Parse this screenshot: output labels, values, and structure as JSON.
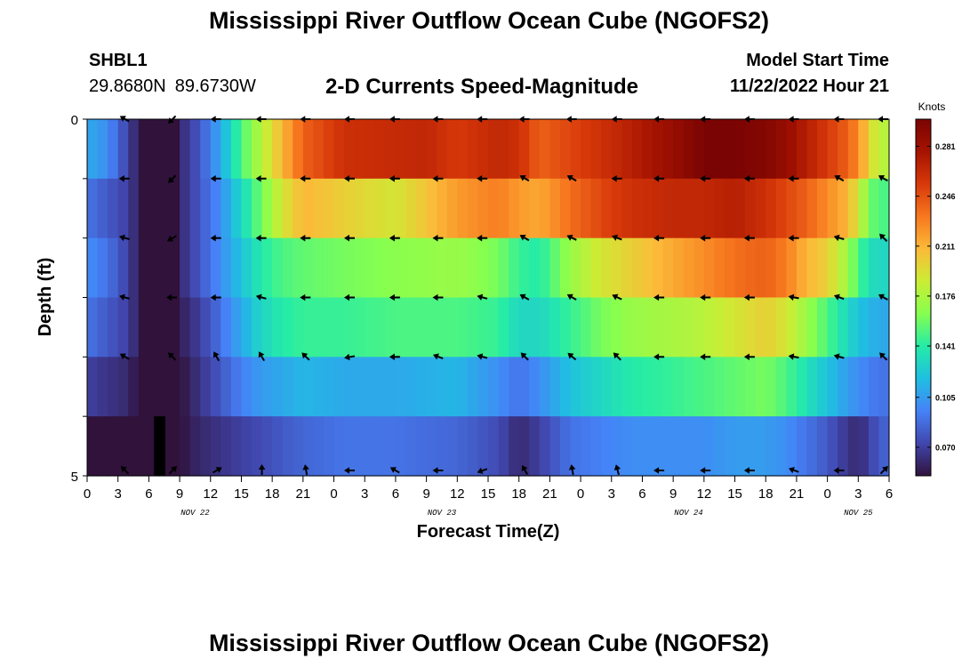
{
  "header": {
    "title": "Mississippi River Outflow Ocean Cube (NGOFS2)",
    "station_id": "SHBL1",
    "lat": "29.8680N",
    "lon": "89.6730W",
    "plot_title": "2-D Currents Speed-Magnitude",
    "start_label": "Model Start Time",
    "start_value": "11/22/2022 Hour 21"
  },
  "footer": {
    "title": "Mississippi River Outflow Ocean Cube (NGOFS2)"
  },
  "chart_data": {
    "type": "heatmap",
    "xlabel": "Forecast Time(Z)",
    "ylabel": "Depth (ft)",
    "xlim": [
      0,
      78
    ],
    "ylim": [
      0,
      5
    ],
    "x_tick_labels": [
      "0",
      "3",
      "6",
      "9",
      "12",
      "15",
      "18",
      "21",
      "0",
      "3",
      "6",
      "9",
      "12",
      "15",
      "18",
      "21",
      "0",
      "3",
      "6",
      "9",
      "12",
      "15",
      "18",
      "21",
      "0",
      "3",
      "6"
    ],
    "y_tick_labels": [
      "0",
      "5"
    ],
    "date_labels": [
      {
        "label": "NOV 22",
        "hour": 10.5
      },
      {
        "label": "NOV 23",
        "hour": 34.5
      },
      {
        "label": "NOV 24",
        "hour": 58.5
      },
      {
        "label": "NOV 25",
        "hour": 75
      }
    ],
    "colorbar": {
      "label": "Knots",
      "ticks": [
        "0.070",
        "0.105",
        "0.141",
        "0.176",
        "0.211",
        "0.246",
        "0.281"
      ],
      "tick_values": [
        0.07,
        0.105,
        0.141,
        0.176,
        0.211,
        0.246,
        0.281
      ],
      "range": [
        0.05,
        0.3
      ],
      "colormap": [
        "#30123b",
        "#4146ad",
        "#4682f8",
        "#1fbfe1",
        "#25eca6",
        "#86ff4f",
        "#cbed34",
        "#fcba39",
        "#f7781f",
        "#d8390a",
        "#a51301",
        "#7a0403"
      ]
    },
    "layers": [
      {
        "name": "0",
        "x": [
          0,
          2,
          4,
          6,
          7,
          8,
          9,
          11,
          13,
          15,
          17,
          19,
          21,
          25,
          33,
          36,
          40,
          42,
          44,
          47,
          50,
          53,
          57,
          60,
          63,
          66,
          68,
          70,
          72,
          74,
          75,
          76,
          77,
          78
        ],
        "values": [
          0.11,
          0.1,
          0.07,
          0.04,
          0.03,
          0.04,
          0.06,
          0.08,
          0.11,
          0.15,
          0.18,
          0.21,
          0.24,
          0.26,
          0.265,
          0.255,
          0.265,
          0.26,
          0.24,
          0.25,
          0.26,
          0.27,
          0.285,
          0.3,
          0.3,
          0.295,
          0.285,
          0.27,
          0.255,
          0.24,
          0.225,
          0.2,
          0.18,
          0.18
        ]
      },
      {
        "name": "1",
        "x": [
          0,
          2,
          4,
          6,
          7,
          8,
          9,
          11,
          13,
          15,
          17,
          19,
          21,
          25,
          30,
          36,
          40,
          42,
          44,
          47,
          50,
          53,
          57,
          60,
          63,
          66,
          68,
          70,
          72,
          74,
          75,
          76,
          77,
          78
        ],
        "values": [
          0.09,
          0.08,
          0.07,
          0.04,
          0.03,
          0.04,
          0.06,
          0.08,
          0.1,
          0.13,
          0.16,
          0.19,
          0.21,
          0.2,
          0.19,
          0.22,
          0.23,
          0.22,
          0.215,
          0.235,
          0.25,
          0.26,
          0.265,
          0.265,
          0.27,
          0.26,
          0.25,
          0.24,
          0.225,
          0.21,
          0.19,
          0.16,
          0.15,
          0.15
        ]
      },
      {
        "name": "2",
        "x": [
          0,
          2,
          4,
          6,
          7,
          8,
          9,
          11,
          13,
          15,
          17,
          19,
          21,
          25,
          30,
          36,
          40,
          42,
          44,
          47,
          50,
          53,
          57,
          60,
          63,
          66,
          68,
          70,
          72,
          74,
          75,
          76,
          77,
          78
        ],
        "values": [
          0.1,
          0.09,
          0.07,
          0.04,
          0.03,
          0.04,
          0.06,
          0.08,
          0.1,
          0.12,
          0.14,
          0.15,
          0.155,
          0.16,
          0.165,
          0.17,
          0.16,
          0.145,
          0.14,
          0.17,
          0.19,
          0.2,
          0.215,
          0.225,
          0.235,
          0.24,
          0.23,
          0.21,
          0.2,
          0.17,
          0.15,
          0.135,
          0.13,
          0.13
        ]
      },
      {
        "name": "3",
        "x": [
          0,
          2,
          4,
          6,
          7,
          8,
          9,
          11,
          13,
          15,
          17,
          19,
          21,
          25,
          30,
          36,
          40,
          42,
          44,
          47,
          50,
          53,
          57,
          60,
          63,
          66,
          68,
          70,
          72,
          74,
          75,
          76,
          77,
          78
        ],
        "values": [
          0.09,
          0.08,
          0.07,
          0.04,
          0.03,
          0.04,
          0.055,
          0.07,
          0.09,
          0.11,
          0.13,
          0.14,
          0.145,
          0.145,
          0.15,
          0.15,
          0.145,
          0.13,
          0.13,
          0.145,
          0.16,
          0.17,
          0.175,
          0.18,
          0.19,
          0.2,
          0.19,
          0.17,
          0.15,
          0.13,
          0.12,
          0.115,
          0.11,
          0.11
        ]
      },
      {
        "name": "4",
        "x": [
          0,
          2,
          4,
          6,
          7,
          8,
          9,
          11,
          13,
          15,
          17,
          19,
          21,
          25,
          30,
          36,
          40,
          42,
          44,
          47,
          50,
          53,
          57,
          60,
          63,
          66,
          68,
          70,
          72,
          74,
          75,
          76,
          77,
          78
        ],
        "values": [
          0.07,
          0.065,
          0.06,
          0.04,
          0.03,
          0.04,
          0.05,
          0.065,
          0.08,
          0.095,
          0.105,
          0.11,
          0.115,
          0.11,
          0.11,
          0.115,
          0.1,
          0.09,
          0.1,
          0.12,
          0.13,
          0.14,
          0.145,
          0.15,
          0.155,
          0.16,
          0.15,
          0.135,
          0.12,
          0.105,
          0.1,
          0.095,
          0.09,
          0.09
        ]
      },
      {
        "name": "5",
        "x": [
          0,
          2,
          4,
          6,
          7,
          8,
          9,
          11,
          13,
          15,
          17,
          19,
          21,
          25,
          30,
          36,
          40,
          42,
          44,
          47,
          50,
          53,
          57,
          60,
          63,
          66,
          68,
          70,
          72,
          74,
          75,
          76,
          77,
          78
        ],
        "values": [
          0.05,
          0.05,
          0.05,
          0.04,
          0.03,
          0.04,
          0.05,
          0.06,
          0.065,
          0.07,
          0.075,
          0.08,
          0.085,
          0.09,
          0.09,
          0.085,
          0.075,
          0.06,
          0.07,
          0.09,
          0.095,
          0.1,
          0.1,
          0.1,
          0.105,
          0.105,
          0.1,
          0.09,
          0.08,
          0.065,
          0.06,
          0.07,
          0.08,
          0.085
        ]
      }
    ],
    "missing_cells": [
      {
        "layer": 5,
        "x_from": 6.5,
        "x_to": 7.6
      }
    ],
    "vector_times": [
      3.7,
      8.3,
      12.6,
      17.0,
      21.3,
      25.6,
      30.0,
      34.2,
      38.5,
      42.6,
      47.2,
      51.6,
      55.7,
      60.2,
      64.5,
      68.8,
      73.2,
      77.7
    ],
    "vector_directions": [
      [
        150,
        225,
        180,
        180,
        180,
        180,
        180,
        180,
        180,
        180,
        180,
        180,
        180,
        180,
        180,
        180,
        180,
        180
      ],
      [
        180,
        225,
        180,
        180,
        180,
        180,
        180,
        180,
        180,
        150,
        150,
        180,
        180,
        180,
        180,
        180,
        150,
        150
      ],
      [
        165,
        210,
        180,
        180,
        180,
        180,
        180,
        180,
        180,
        150,
        155,
        160,
        180,
        180,
        180,
        180,
        165,
        135
      ],
      [
        165,
        180,
        180,
        165,
        180,
        180,
        180,
        180,
        165,
        150,
        150,
        155,
        180,
        180,
        180,
        170,
        160,
        150
      ],
      [
        150,
        135,
        120,
        120,
        135,
        190,
        180,
        160,
        165,
        135,
        140,
        135,
        180,
        180,
        180,
        170,
        165,
        135
      ],
      [
        135,
        45,
        30,
        90,
        100,
        180,
        150,
        180,
        200,
        120,
        100,
        105,
        180,
        180,
        180,
        160,
        180,
        45
      ]
    ]
  }
}
